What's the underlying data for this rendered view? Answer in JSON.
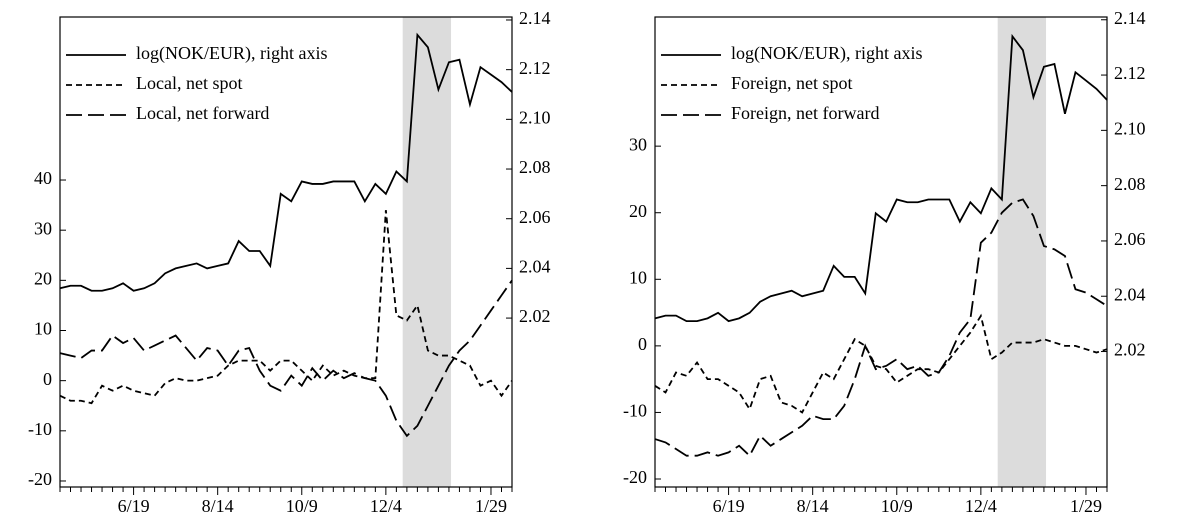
{
  "chart_data": [
    {
      "type": "line",
      "legend": "upper left",
      "categories": [
        null,
        null,
        null,
        null,
        null,
        null,
        null,
        "6/19",
        null,
        null,
        null,
        null,
        null,
        null,
        null,
        "8/14",
        null,
        null,
        null,
        null,
        null,
        null,
        null,
        "10/9",
        null,
        null,
        null,
        null,
        null,
        null,
        null,
        "12/4",
        null,
        null,
        null,
        null,
        null,
        null,
        null,
        null,
        null,
        "1/29",
        null,
        null
      ],
      "highlight": [
        32.6,
        37.2
      ],
      "ylim": [
        -21.2,
        72.5
      ],
      "yticks": [
        -20,
        -10,
        0,
        10,
        20,
        30,
        40
      ],
      "y2lim": [
        1.952,
        2.1412
      ],
      "y2ticks": [
        2.02,
        2.04,
        2.06,
        2.08,
        {
          "value": 2.1,
          "label": "2.10"
        },
        2.12,
        2.14
      ],
      "series": [
        {
          "name": "log(NOK/EUR), right axis",
          "color": "#000000",
          "dash": "solid",
          "axis": "y2",
          "values": [
            2.032,
            2.033,
            2.033,
            2.031,
            2.031,
            2.032,
            2.034,
            2.031,
            2.032,
            2.034,
            2.038,
            2.04,
            2.041,
            2.042,
            2.04,
            2.041,
            2.042,
            2.051,
            2.047,
            2.047,
            2.041,
            2.07,
            2.067,
            2.075,
            2.074,
            2.074,
            2.075,
            2.075,
            2.075,
            2.067,
            2.074,
            2.07,
            2.079,
            2.075,
            2.134,
            2.129,
            2.112,
            2.123,
            2.124,
            2.106,
            2.121,
            2.118,
            2.115,
            2.111
          ]
        },
        {
          "name": "Local, net spot",
          "color": "#000000",
          "dash": "short",
          "values": [
            -3,
            -4,
            -4,
            -4.5,
            -1,
            -2,
            -1,
            -2,
            -2.5,
            -3,
            -0.5,
            0.5,
            0,
            0,
            0.5,
            1,
            3,
            4,
            4,
            4,
            2,
            4,
            4,
            2,
            0,
            3,
            1,
            2,
            1,
            0.5,
            0.5,
            34,
            13,
            12,
            15,
            6,
            5,
            5,
            4,
            3,
            -1,
            0,
            -3,
            0
          ]
        },
        {
          "name": "Local, net forward",
          "color": "#000000",
          "dash": "long",
          "values": [
            5.5,
            5,
            4.5,
            6,
            6,
            9,
            7.5,
            8.5,
            6,
            7,
            8,
            9,
            6.5,
            4,
            6.5,
            6,
            3,
            6,
            6.5,
            2,
            -1,
            -2,
            1,
            -1,
            2.5,
            0,
            2,
            0.5,
            1.5,
            0.5,
            0,
            -3,
            -8,
            -11,
            -9,
            -5,
            -1,
            3,
            6,
            8,
            11,
            14,
            17,
            20
          ]
        }
      ]
    },
    {
      "type": "line",
      "legend": "upper left",
      "categories": [
        null,
        null,
        null,
        null,
        null,
        null,
        null,
        "6/19",
        null,
        null,
        null,
        null,
        null,
        null,
        null,
        "8/14",
        null,
        null,
        null,
        null,
        null,
        null,
        null,
        "10/9",
        null,
        null,
        null,
        null,
        null,
        null,
        null,
        "12/4",
        null,
        null,
        null,
        null,
        null,
        null,
        null,
        null,
        null,
        "1/29",
        null,
        null
      ],
      "highlight": [
        32.6,
        37.2
      ],
      "ylim": [
        -21.2,
        49.4
      ],
      "yticks": [
        -20,
        -10,
        0,
        10,
        20,
        30
      ],
      "y2lim": [
        1.971,
        2.141
      ],
      "y2ticks": [
        2.02,
        2.04,
        2.06,
        2.08,
        {
          "value": 2.1,
          "label": "2.10"
        },
        2.12,
        2.14
      ],
      "series": [
        {
          "name": "log(NOK/EUR), right axis",
          "color": "#000000",
          "dash": "solid",
          "axis": "y2",
          "values": [
            2.032,
            2.033,
            2.033,
            2.031,
            2.031,
            2.032,
            2.034,
            2.031,
            2.032,
            2.034,
            2.038,
            2.04,
            2.041,
            2.042,
            2.04,
            2.041,
            2.042,
            2.051,
            2.047,
            2.047,
            2.041,
            2.07,
            2.067,
            2.075,
            2.074,
            2.074,
            2.075,
            2.075,
            2.075,
            2.067,
            2.074,
            2.07,
            2.079,
            2.075,
            2.134,
            2.129,
            2.112,
            2.123,
            2.124,
            2.106,
            2.121,
            2.118,
            2.115,
            2.111
          ]
        },
        {
          "name": "Foreign, net spot",
          "color": "#000000",
          "dash": "short",
          "values": [
            -6,
            -7,
            -4,
            -4.5,
            -2.5,
            -5,
            -5,
            -6,
            -7,
            -9.5,
            -5,
            -4.5,
            -8.5,
            -9,
            -10,
            -7,
            -4,
            -5,
            -2,
            1,
            0,
            -3,
            -3.5,
            -5.5,
            -4.5,
            -3.5,
            -3.5,
            -4,
            -2,
            0,
            2,
            4.5,
            -2,
            -1,
            0.5,
            0.5,
            0.5,
            1,
            0.5,
            0,
            0,
            -0.5,
            -1,
            -0.5
          ]
        },
        {
          "name": "Foreign, net forward",
          "color": "#000000",
          "dash": "long",
          "values": [
            -14,
            -14.5,
            -15.5,
            -16.5,
            -16.5,
            -16,
            -16.5,
            -16,
            -15,
            -16.5,
            -13.5,
            -15,
            -14,
            -13,
            -12,
            -10.5,
            -11,
            -11,
            -9,
            -5,
            0,
            -3.5,
            -3,
            -2,
            -3.5,
            -3,
            -4.5,
            -4,
            -1.5,
            2,
            4,
            15.5,
            17,
            20,
            21.5,
            22,
            19.5,
            15,
            14.5,
            13.5,
            8.5,
            8,
            7,
            6
          ]
        }
      ]
    }
  ]
}
